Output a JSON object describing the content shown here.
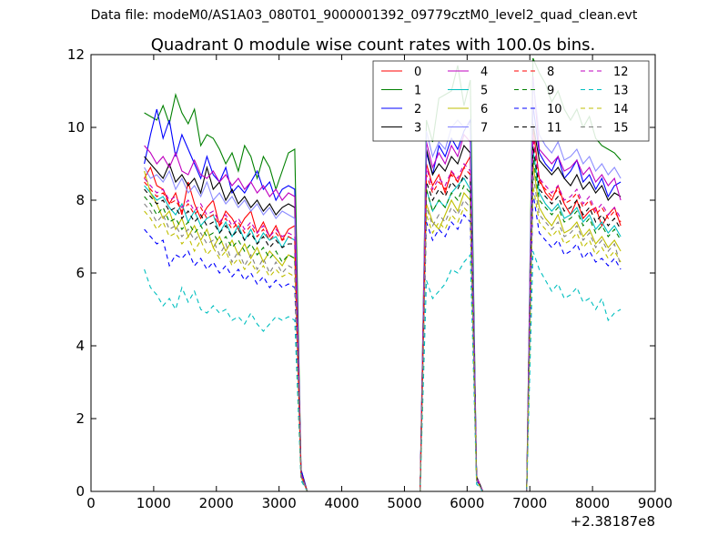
{
  "figure": {
    "supertitle": "Data file: modeM0/AS1A03_080T01_9000001392_09779cztM0_level2_quad_clean.evt"
  },
  "chart_data": {
    "type": "line",
    "title": "Quadrant 0 module wise count rates with 100.0s bins.",
    "xlabel": "",
    "ylabel": "",
    "x_offset_label": "+2.38187e8",
    "xlim": [
      0,
      9000
    ],
    "ylim": [
      0,
      12
    ],
    "xticks": [
      0,
      1000,
      2000,
      3000,
      4000,
      5000,
      6000,
      7000,
      8000,
      9000
    ],
    "yticks": [
      0,
      2,
      4,
      6,
      8,
      10,
      12
    ],
    "grid": false,
    "legend": {
      "placement": "upper-right",
      "columns": 4
    },
    "x": [
      850,
      950,
      1050,
      1150,
      1250,
      1350,
      1450,
      1550,
      1650,
      1750,
      1850,
      1950,
      2050,
      2150,
      2250,
      2350,
      2450,
      2550,
      2650,
      2750,
      2850,
      2950,
      3050,
      3150,
      3250,
      3350,
      3450,
      5250,
      5350,
      5450,
      5550,
      5650,
      5750,
      5850,
      5950,
      6050,
      6150,
      6250,
      6950,
      7050,
      7150,
      7250,
      7350,
      7450,
      7550,
      7650,
      7750,
      7850,
      7950,
      8050,
      8150,
      8250,
      8350,
      8450
    ],
    "series": [
      {
        "name": "0",
        "color": "#ff0000",
        "style": "solid",
        "values": [
          8.6,
          8.9,
          8.4,
          8.3,
          7.9,
          8.2,
          7.6,
          8.5,
          7.9,
          7.5,
          7.8,
          8.0,
          7.3,
          7.7,
          7.5,
          7.2,
          7.5,
          7.7,
          7.1,
          7.4,
          7.0,
          7.3,
          6.9,
          7.2,
          7.3,
          0.5,
          0.0,
          0.0,
          9.0,
          8.4,
          8.7,
          8.2,
          8.8,
          8.5,
          8.9,
          9.2,
          0.4,
          0.0,
          0.0,
          10.0,
          8.6,
          8.2,
          8.0,
          8.4,
          7.9,
          7.6,
          8.0,
          7.5,
          7.7,
          7.8,
          7.3,
          7.6,
          7.8,
          7.3
        ]
      },
      {
        "name": "1",
        "color": "#008000",
        "style": "solid",
        "values": [
          10.4,
          10.3,
          10.2,
          10.6,
          10.1,
          10.9,
          10.4,
          10.1,
          10.5,
          9.5,
          9.8,
          9.7,
          9.4,
          9.0,
          9.3,
          8.8,
          9.5,
          9.2,
          8.6,
          9.2,
          8.9,
          8.3,
          8.8,
          9.3,
          9.4,
          0.6,
          0.0,
          0.0,
          10.2,
          9.6,
          10.8,
          10.9,
          11.0,
          11.7,
          10.6,
          11.3,
          0.4,
          0.0,
          0.0,
          11.9,
          11.5,
          11.2,
          10.7,
          11.0,
          10.5,
          10.2,
          10.5,
          10.0,
          10.3,
          9.7,
          9.5,
          9.4,
          9.3,
          9.1
        ]
      },
      {
        "name": "2",
        "color": "#0000ff",
        "style": "solid",
        "values": [
          9.0,
          9.8,
          10.5,
          9.7,
          10.2,
          9.2,
          9.8,
          9.4,
          9.0,
          8.6,
          9.2,
          8.7,
          8.5,
          8.9,
          8.2,
          8.4,
          8.2,
          8.5,
          8.8,
          8.3,
          8.5,
          8.0,
          8.3,
          8.4,
          8.3,
          0.6,
          0.0,
          0.0,
          9.3,
          8.7,
          9.5,
          9.2,
          9.7,
          9.4,
          9.9,
          10.2,
          0.4,
          0.0,
          0.0,
          10.6,
          9.3,
          9.0,
          8.8,
          9.2,
          8.6,
          8.8,
          9.1,
          8.5,
          8.7,
          8.3,
          8.6,
          8.1,
          8.4,
          8.5
        ]
      },
      {
        "name": "3",
        "color": "#000000",
        "style": "solid",
        "values": [
          9.2,
          9.0,
          8.8,
          8.6,
          9.0,
          8.5,
          8.7,
          8.4,
          8.6,
          8.2,
          8.9,
          8.3,
          8.5,
          8.0,
          8.3,
          7.9,
          8.1,
          7.8,
          8.0,
          7.7,
          7.9,
          7.6,
          7.8,
          7.9,
          7.8,
          0.5,
          0.0,
          0.0,
          9.4,
          8.7,
          9.0,
          8.8,
          9.2,
          9.0,
          9.5,
          9.3,
          0.4,
          0.0,
          0.0,
          10.1,
          9.1,
          8.9,
          8.7,
          8.9,
          8.6,
          8.4,
          8.7,
          8.3,
          8.5,
          8.2,
          8.4,
          8.0,
          8.2,
          8.1
        ]
      },
      {
        "name": "4",
        "color": "#bf00bf",
        "style": "solid",
        "values": [
          9.5,
          9.3,
          9.0,
          9.2,
          8.9,
          9.3,
          8.8,
          8.7,
          9.1,
          8.7,
          8.6,
          8.8,
          8.5,
          8.7,
          8.4,
          8.6,
          8.3,
          8.5,
          8.2,
          8.4,
          8.1,
          8.3,
          8.0,
          8.2,
          8.1,
          0.5,
          0.0,
          0.0,
          9.6,
          8.9,
          9.3,
          9.0,
          9.5,
          9.2,
          9.8,
          9.6,
          0.4,
          0.0,
          0.0,
          11.4,
          9.4,
          9.2,
          9.0,
          9.2,
          8.8,
          8.9,
          9.1,
          8.7,
          8.9,
          8.5,
          8.7,
          8.4,
          8.6,
          8.0
        ]
      },
      {
        "name": "5",
        "color": "#00bfbf",
        "style": "solid",
        "values": [
          8.4,
          8.2,
          8.0,
          8.1,
          7.8,
          7.6,
          7.9,
          7.4,
          7.7,
          7.3,
          7.5,
          7.6,
          7.1,
          7.4,
          7.0,
          7.3,
          6.9,
          7.2,
          6.8,
          7.1,
          6.9,
          7.0,
          6.7,
          7.0,
          6.9,
          0.5,
          0.0,
          0.0,
          8.3,
          7.7,
          8.0,
          7.8,
          8.2,
          8.4,
          8.6,
          8.3,
          0.3,
          0.0,
          0.0,
          9.4,
          8.2,
          7.9,
          7.7,
          7.9,
          7.5,
          7.6,
          7.8,
          7.4,
          7.6,
          7.2,
          7.4,
          7.1,
          7.3,
          7.0
        ]
      },
      {
        "name": "6",
        "color": "#bfbf00",
        "style": "solid",
        "values": [
          8.8,
          8.2,
          7.9,
          7.5,
          7.7,
          7.2,
          7.5,
          7.0,
          7.3,
          6.9,
          7.2,
          6.7,
          7.0,
          6.6,
          6.9,
          6.5,
          6.8,
          6.4,
          6.7,
          6.3,
          6.6,
          6.4,
          6.2,
          6.5,
          6.4,
          0.4,
          0.0,
          0.0,
          7.9,
          7.4,
          7.2,
          7.6,
          8.0,
          7.7,
          8.2,
          8.0,
          0.3,
          0.0,
          0.0,
          9.0,
          7.8,
          7.5,
          7.3,
          7.6,
          7.1,
          7.2,
          7.4,
          7.0,
          7.2,
          6.8,
          7.0,
          6.7,
          6.9,
          6.6
        ]
      },
      {
        "name": "7",
        "color": "#8080ff",
        "style": "solid",
        "alpha": 0.9,
        "values": [
          8.9,
          8.6,
          8.7,
          8.5,
          8.8,
          8.3,
          8.6,
          8.2,
          8.4,
          8.1,
          8.5,
          8.0,
          8.2,
          7.9,
          8.1,
          7.8,
          8.0,
          7.7,
          7.9,
          7.6,
          7.8,
          7.5,
          7.7,
          7.6,
          7.5,
          0.5,
          0.0,
          0.0,
          9.9,
          9.2,
          9.6,
          9.4,
          10.0,
          10.2,
          10.0,
          10.1,
          0.4,
          0.0,
          0.0,
          11.3,
          9.8,
          9.5,
          9.3,
          9.6,
          9.1,
          9.2,
          9.4,
          9.0,
          9.2,
          8.8,
          9.0,
          8.7,
          8.9,
          8.6
        ]
      },
      {
        "name": "8",
        "color": "#ff0000",
        "style": "dashed",
        "values": [
          8.5,
          8.3,
          8.1,
          8.2,
          7.9,
          8.0,
          7.7,
          7.9,
          7.6,
          7.8,
          7.5,
          7.6,
          7.3,
          7.5,
          7.2,
          7.4,
          7.1,
          7.3,
          7.0,
          7.2,
          6.9,
          7.1,
          6.9,
          7.0,
          6.9,
          0.5,
          0.0,
          0.0,
          8.7,
          8.2,
          8.5,
          8.3,
          8.7,
          8.5,
          8.9,
          8.7,
          0.4,
          0.0,
          0.0,
          9.7,
          8.5,
          8.3,
          8.1,
          8.3,
          7.9,
          8.0,
          8.2,
          7.8,
          8.0,
          7.6,
          7.8,
          7.5,
          7.7,
          7.4
        ]
      },
      {
        "name": "9",
        "color": "#008000",
        "style": "dashed",
        "values": [
          8.1,
          7.9,
          7.6,
          7.8,
          7.4,
          7.5,
          7.2,
          7.4,
          7.1,
          7.3,
          7.0,
          7.1,
          6.8,
          7.0,
          6.7,
          6.9,
          6.6,
          6.8,
          6.5,
          6.7,
          6.4,
          6.6,
          6.3,
          6.5,
          6.4,
          0.5,
          0.0,
          0.0,
          8.3,
          7.7,
          8.0,
          7.8,
          8.2,
          8.0,
          8.4,
          8.2,
          0.3,
          0.0,
          0.0,
          9.2,
          8.0,
          7.8,
          7.6,
          7.8,
          7.4,
          7.5,
          7.7,
          7.3,
          7.5,
          7.1,
          7.3,
          7.0,
          7.2,
          6.9
        ]
      },
      {
        "name": "10",
        "color": "#0000ff",
        "style": "dashed",
        "values": [
          7.2,
          7.0,
          6.8,
          6.9,
          6.2,
          6.5,
          6.4,
          6.6,
          6.2,
          6.4,
          6.1,
          6.3,
          6.0,
          6.2,
          5.9,
          6.1,
          5.8,
          6.0,
          5.7,
          5.9,
          5.6,
          5.8,
          5.6,
          5.7,
          5.6,
          0.4,
          0.0,
          0.0,
          7.4,
          6.9,
          7.2,
          7.0,
          7.4,
          7.2,
          7.6,
          7.4,
          0.3,
          0.0,
          0.0,
          8.2,
          7.1,
          6.9,
          6.7,
          6.9,
          6.5,
          6.6,
          6.8,
          6.4,
          6.6,
          6.3,
          6.4,
          6.2,
          6.4,
          6.1
        ]
      },
      {
        "name": "11",
        "color": "#000000",
        "style": "dashed",
        "values": [
          8.3,
          8.1,
          7.9,
          8.0,
          7.7,
          7.8,
          7.5,
          7.7,
          7.4,
          7.6,
          7.3,
          7.4,
          7.1,
          7.3,
          7.0,
          7.2,
          6.9,
          7.1,
          6.8,
          7.0,
          6.7,
          6.9,
          6.7,
          6.8,
          6.8,
          0.5,
          0.0,
          0.0,
          8.5,
          8.0,
          8.3,
          8.1,
          8.5,
          8.3,
          8.7,
          8.5,
          0.4,
          0.0,
          0.0,
          9.5,
          8.3,
          8.1,
          7.9,
          8.1,
          7.7,
          7.8,
          8.0,
          7.6,
          7.8,
          7.4,
          7.6,
          7.3,
          7.5,
          7.2
        ]
      },
      {
        "name": "12",
        "color": "#bf00bf",
        "style": "dashed",
        "values": [
          8.6,
          8.4,
          8.2,
          8.3,
          8.0,
          8.1,
          7.8,
          8.0,
          7.7,
          7.9,
          7.6,
          7.7,
          7.4,
          7.6,
          7.3,
          7.5,
          7.2,
          7.4,
          7.1,
          7.3,
          7.0,
          7.2,
          7.0,
          7.1,
          7.0,
          0.5,
          0.0,
          0.0,
          8.9,
          8.3,
          8.6,
          8.4,
          8.8,
          8.6,
          9.0,
          8.8,
          0.4,
          0.0,
          0.0,
          9.8,
          8.6,
          8.4,
          8.2,
          8.4,
          8.0,
          8.1,
          8.3,
          7.9,
          8.1,
          7.7,
          7.9,
          7.6,
          7.8,
          7.5
        ]
      },
      {
        "name": "13",
        "color": "#00bfbf",
        "style": "dashed",
        "values": [
          6.1,
          5.6,
          5.4,
          5.1,
          5.3,
          5.0,
          5.6,
          5.2,
          5.5,
          5.0,
          4.9,
          5.1,
          4.9,
          5.0,
          4.7,
          4.8,
          4.6,
          4.9,
          4.6,
          4.4,
          4.6,
          4.8,
          4.7,
          4.8,
          4.7,
          0.3,
          0.0,
          0.0,
          5.8,
          5.3,
          5.5,
          5.7,
          6.1,
          6.0,
          6.3,
          6.5,
          0.2,
          0.0,
          0.0,
          6.6,
          6.1,
          5.8,
          5.5,
          5.7,
          5.3,
          5.4,
          5.6,
          5.2,
          5.3,
          5.0,
          5.3,
          4.7,
          4.9,
          5.0
        ]
      },
      {
        "name": "14",
        "color": "#bfbf00",
        "style": "dashed",
        "values": [
          7.7,
          7.5,
          7.2,
          7.4,
          7.0,
          7.1,
          6.8,
          7.0,
          6.6,
          6.9,
          6.5,
          6.7,
          6.4,
          6.6,
          6.2,
          6.4,
          6.1,
          6.3,
          6.0,
          6.2,
          5.9,
          6.1,
          5.9,
          6.0,
          5.9,
          0.4,
          0.0,
          0.0,
          7.6,
          7.1,
          7.4,
          7.2,
          7.6,
          7.4,
          7.8,
          7.6,
          0.3,
          0.0,
          0.0,
          8.4,
          7.4,
          7.2,
          7.0,
          7.2,
          6.8,
          6.9,
          7.1,
          6.7,
          6.9,
          6.5,
          6.7,
          6.4,
          6.6,
          6.3
        ]
      },
      {
        "name": "15",
        "color": "#808080",
        "style": "dashed",
        "values": [
          7.9,
          7.7,
          7.4,
          7.6,
          7.2,
          7.3,
          7.0,
          7.2,
          6.9,
          7.1,
          6.8,
          6.9,
          6.5,
          6.8,
          6.3,
          6.6,
          6.2,
          6.5,
          6.1,
          6.4,
          6.0,
          6.3,
          6.0,
          6.2,
          6.1,
          0.4,
          0.0,
          0.0,
          7.8,
          7.3,
          7.6,
          7.4,
          7.8,
          7.6,
          8.0,
          7.8,
          0.3,
          0.0,
          0.0,
          8.7,
          7.6,
          7.4,
          7.2,
          7.4,
          7.0,
          7.1,
          7.3,
          6.9,
          7.1,
          6.7,
          6.9,
          6.6,
          6.8,
          6.2
        ]
      }
    ]
  }
}
